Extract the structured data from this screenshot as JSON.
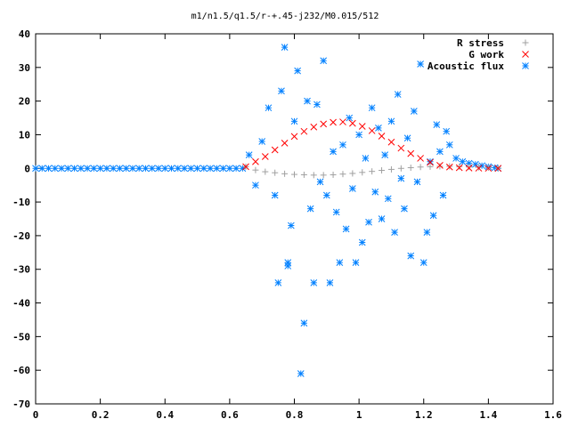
{
  "chart_data": {
    "type": "scatter",
    "title": "m1/n1.5/q1.5/r-+.45-j232/M0.015/512",
    "xlabel": "",
    "ylabel": "",
    "xlim": [
      0,
      1.6
    ],
    "ylim": [
      -70,
      40
    ],
    "x_ticks": [
      "0",
      "0.2",
      "0.4",
      "0.6",
      "0.8",
      "1",
      "1.2",
      "1.4",
      "1.6"
    ],
    "y_ticks": [
      "40",
      "30",
      "20",
      "10",
      "0",
      "-10",
      "-20",
      "-30",
      "-40",
      "-50",
      "-60",
      "-70"
    ],
    "grid": false,
    "legend_position": "top-right",
    "series": [
      {
        "name": "R stress",
        "marker": "+",
        "color": "#a0a0a0",
        "x": [
          0.65,
          0.68,
          0.71,
          0.74,
          0.77,
          0.8,
          0.83,
          0.86,
          0.89,
          0.92,
          0.95,
          0.98,
          1.01,
          1.04,
          1.07,
          1.1,
          1.13,
          1.16,
          1.19,
          1.22,
          1.25,
          1.28,
          1.31,
          1.34,
          1.37,
          1.4,
          1.43
        ],
        "y": [
          0.5,
          -0.5,
          -1,
          -1.3,
          -1.6,
          -1.8,
          -1.9,
          -2,
          -2,
          -1.9,
          -1.7,
          -1.5,
          -1.2,
          -0.9,
          -0.6,
          -0.3,
          0,
          0.2,
          0.4,
          0.5,
          0.6,
          0.6,
          0.5,
          0.4,
          0.3,
          0.2,
          0.1
        ]
      },
      {
        "name": "G work",
        "marker": "x",
        "color": "#ff0000",
        "x": [
          0.65,
          0.68,
          0.71,
          0.74,
          0.77,
          0.8,
          0.83,
          0.86,
          0.89,
          0.92,
          0.95,
          0.98,
          1.01,
          1.04,
          1.07,
          1.1,
          1.13,
          1.16,
          1.19,
          1.22,
          1.25,
          1.28,
          1.31,
          1.34,
          1.37,
          1.4,
          1.43
        ],
        "y": [
          0.5,
          2,
          3.5,
          5.5,
          7.5,
          9.5,
          11,
          12.3,
          13.2,
          13.7,
          13.8,
          13.4,
          12.5,
          11.2,
          9.6,
          7.8,
          6,
          4.4,
          3,
          1.8,
          0.9,
          0.4,
          0.2,
          0.1,
          0.05,
          0.02,
          0
        ]
      },
      {
        "name": "Acoustic flux",
        "marker": "*",
        "color": "#0080ff",
        "x": [
          0,
          0.02,
          0.04,
          0.06,
          0.08,
          0.1,
          0.12,
          0.14,
          0.16,
          0.18,
          0.2,
          0.22,
          0.24,
          0.26,
          0.28,
          0.3,
          0.32,
          0.34,
          0.36,
          0.38,
          0.4,
          0.42,
          0.44,
          0.46,
          0.48,
          0.5,
          0.52,
          0.54,
          0.56,
          0.58,
          0.6,
          0.62,
          0.64,
          0.66,
          0.68,
          0.7,
          0.72,
          0.74,
          0.75,
          0.76,
          0.77,
          0.78,
          0.78,
          0.79,
          0.8,
          0.81,
          0.82,
          0.83,
          0.84,
          0.85,
          0.86,
          0.87,
          0.88,
          0.89,
          0.9,
          0.91,
          0.92,
          0.93,
          0.94,
          0.95,
          0.96,
          0.97,
          0.98,
          0.99,
          1.0,
          1.01,
          1.02,
          1.03,
          1.04,
          1.05,
          1.06,
          1.07,
          1.08,
          1.09,
          1.1,
          1.11,
          1.12,
          1.13,
          1.14,
          1.15,
          1.16,
          1.17,
          1.18,
          1.19,
          1.2,
          1.21,
          1.22,
          1.23,
          1.24,
          1.25,
          1.26,
          1.27,
          1.28,
          1.3,
          1.32,
          1.34,
          1.36,
          1.38,
          1.4,
          1.42,
          1.43
        ],
        "y": [
          0,
          0,
          0,
          0,
          0,
          0,
          0,
          0,
          0,
          0,
          0,
          0,
          0,
          0,
          0,
          0,
          0,
          0,
          0,
          0,
          0,
          0,
          0,
          0,
          0,
          0,
          0,
          0,
          0,
          0,
          0,
          0,
          0,
          4,
          -5,
          8,
          18,
          -8,
          -34,
          23,
          36,
          -29,
          -28,
          -17,
          14,
          29,
          -61,
          -46,
          20,
          -12,
          -34,
          19,
          -4,
          32,
          -8,
          -34,
          5,
          -13,
          -28,
          7,
          -18,
          15,
          -6,
          -28,
          10,
          -22,
          3,
          -16,
          18,
          -7,
          12,
          -15,
          4,
          -9,
          14,
          -19,
          22,
          -3,
          -12,
          9,
          -26,
          17,
          -4,
          31,
          -28,
          -19,
          2,
          -14,
          13,
          5,
          -8,
          11,
          7,
          3,
          2,
          1.5,
          1.2,
          0.8,
          0.5,
          0.2,
          0
        ]
      }
    ]
  }
}
